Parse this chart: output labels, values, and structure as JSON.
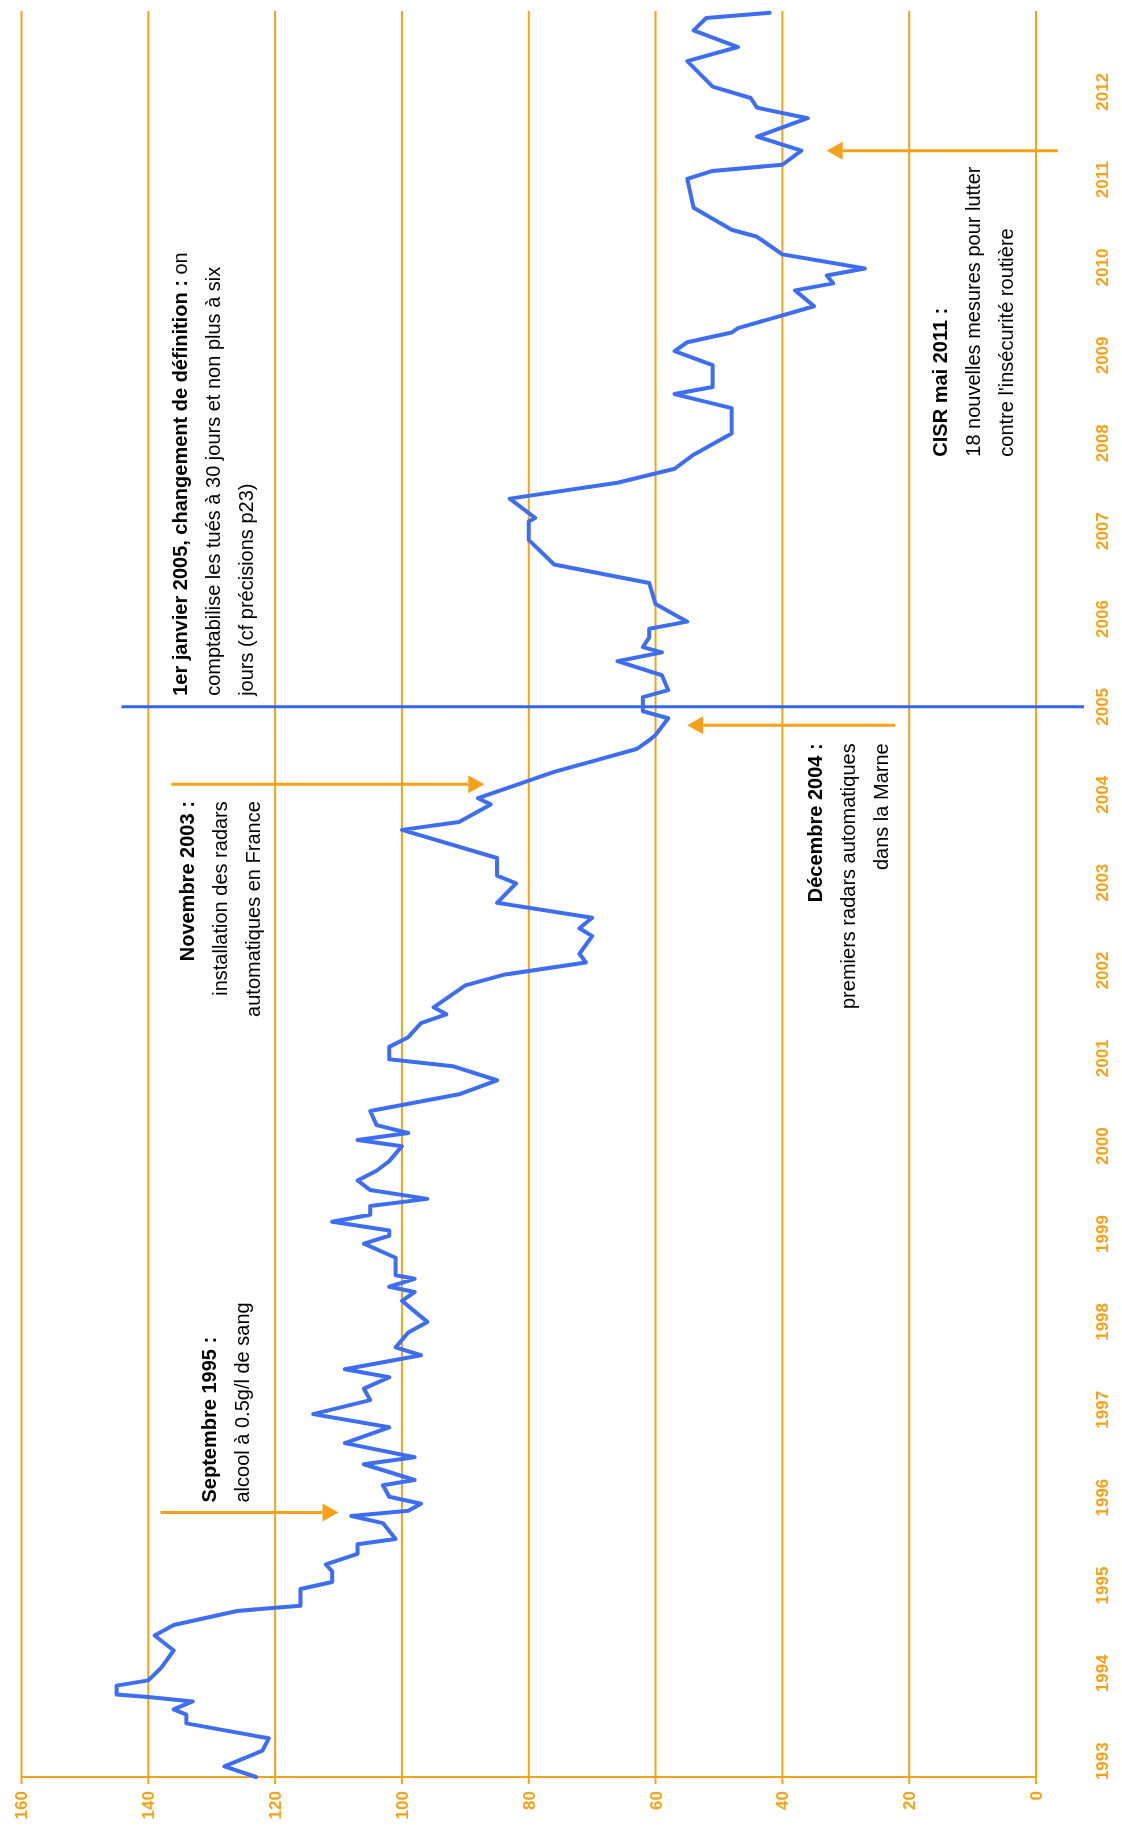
{
  "chart_data": {
    "type": "line",
    "values": [
      1992.82,
      1992.94,
      1993.12,
      1993.26,
      1993.43,
      1993.53,
      1993.59,
      1993.68,
      1993.73,
      1993.76,
      1993.86,
      1993.92,
      1994.06,
      1994.26,
      1994.43,
      1994.55,
      1994.71,
      1994.77,
      1994.96,
      1995.04,
      1995.16,
      1995.24,
      1995.36,
      1995.47,
      1995.53,
      1995.71,
      1995.79,
      1995.85,
      1995.93,
      1996.01,
      1996.14,
      1996.2,
      1996.38,
      1996.46,
      1996.62,
      1996.8,
      1996.95,
      1997.11,
      1997.24,
      1997.37,
      1997.46,
      1997.62,
      1997.71,
      1997.88,
      1998.0,
      1998.12,
      1998.24,
      1998.34,
      1998.4,
      1998.49,
      1998.53,
      1998.73,
      1998.89,
      1998.98,
      1999.04,
      1999.14,
      1999.22,
      1999.32,
      1999.4,
      1999.5,
      1999.61,
      1999.72,
      1999.83,
      2000.0,
      2000.07,
      2000.15,
      2000.24,
      2000.4,
      2000.59,
      2000.75,
      2000.91,
      2000.99,
      2001.13,
      2001.24,
      2001.4,
      2001.5,
      2001.58,
      2001.83,
      2001.95,
      2002.09,
      2002.19,
      2002.39,
      2002.48,
      2002.6,
      2002.77,
      2002.99,
      2003.08,
      2003.28,
      2003.6,
      2003.69,
      2003.89,
      2003.96,
      2004.16,
      2004.26,
      2004.38,
      2004.52,
      2004.62,
      2004.68,
      2004.87,
      2004.95,
      2005.11,
      2005.19,
      2005.36,
      2005.52,
      2005.62,
      2005.68,
      2005.79,
      2005.89,
      2005.97,
      2006.17,
      2006.41,
      2006.62,
      2006.9,
      2007.11,
      2007.15,
      2007.37,
      2007.55,
      2007.71,
      2007.87,
      2008.11,
      2008.4,
      2008.56,
      2008.64,
      2008.89,
      2009.05,
      2009.15,
      2009.26,
      2009.31,
      2009.56,
      2009.74,
      2009.82,
      2009.91,
      2009.99,
      2010.15,
      2010.35,
      2010.43,
      2010.68,
      2011.01,
      2011.1,
      2011.17,
      2011.33,
      2011.49,
      2011.7,
      2011.82,
      2011.93,
      2012.06,
      2012.35,
      2012.51,
      2012.7,
      2012.84,
      2012.9
    ],
    "x": [
      123,
      128,
      122,
      121,
      134,
      134,
      136,
      133,
      140,
      145,
      145,
      140,
      138,
      136,
      139,
      136,
      126,
      116,
      116,
      111,
      111,
      112,
      107,
      107,
      101,
      103,
      108,
      99,
      97,
      102,
      103,
      98,
      106,
      98,
      109,
      102,
      114,
      105,
      106,
      102,
      109,
      97,
      101,
      99,
      96,
      98,
      100,
      98,
      102,
      98,
      101,
      101,
      106,
      102,
      102,
      111,
      105,
      105,
      96,
      105,
      107,
      104,
      102,
      100,
      107,
      99,
      104,
      105,
      91,
      85,
      92,
      102,
      102,
      99,
      97,
      93,
      95,
      90,
      84,
      71,
      72,
      70,
      72,
      70,
      85,
      82,
      85,
      85,
      100,
      91,
      86,
      88,
      80,
      76,
      70,
      63,
      61,
      60,
      58,
      62,
      62,
      58,
      59,
      66,
      59,
      62,
      61,
      61,
      55,
      60,
      61,
      76,
      80,
      80,
      79,
      83,
      66,
      57,
      54,
      48,
      48,
      57,
      51,
      51,
      57,
      55,
      48,
      47,
      35,
      38,
      32,
      33,
      27,
      40,
      44,
      48,
      54,
      55,
      51,
      40,
      37,
      44,
      36,
      44,
      45,
      51,
      55,
      47,
      54,
      52,
      42
    ],
    "color": "#3d6ef2",
    "ylim": [
      1992.82,
      2012.92
    ],
    "yticks": [
      1993,
      1994,
      1995,
      1996,
      1997,
      1998,
      1999,
      2000,
      2001,
      2002,
      2003,
      2004,
      2005,
      2006,
      2007,
      2008,
      2009,
      2010,
      2011,
      2012
    ],
    "xlim": [
      160,
      0
    ],
    "xticks": [
      160,
      140,
      120,
      100,
      80,
      60,
      40,
      20,
      0
    ],
    "grid": "x",
    "ref_lines": [
      {
        "axis": "y",
        "value": 2005,
        "label": "1er janvier 2005, changement de définition : on\ncomptabilise les tués à 30 jours et non plus à six\njours (cf précisions p23)",
        "color": "#3366ee"
      }
    ],
    "annotations": [
      "Septembre 1995 :\nalcool à 0.5g/l de sang",
      "Novembre 2003 :\ninstallation des radars\nautomatiques en France",
      "Décembre 2004 :\npremiers radars automatiques\ndans la Marne",
      "CISR mai 2011 :\n18 nouvelles mesures pour lutter\ncontre l'insécurité routière"
    ]
  }
}
